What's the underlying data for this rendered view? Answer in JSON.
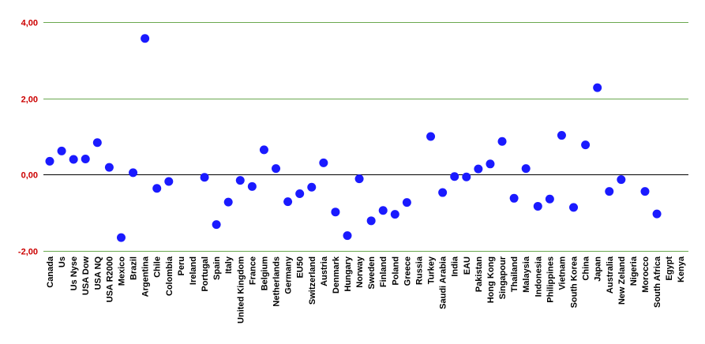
{
  "chart_data": {
    "type": "scatter",
    "title": "",
    "xlabel": "",
    "ylabel": "",
    "ylim": [
      -2,
      4
    ],
    "yticks": [
      -2,
      0,
      2,
      4
    ],
    "ytick_labels": [
      "-2,00",
      "0,00",
      "2,00",
      "4,00"
    ],
    "grid": true,
    "legend": "none",
    "point_color": "#1a1aff",
    "grid_color": "#6aa84f",
    "ytick_color": "#cc0000",
    "categories": [
      "Canada",
      "Us",
      "Us Nyse",
      "USA Dow",
      "USA NQ",
      "USA R2000",
      "Mexico",
      "Brazil",
      "Argentina",
      "Chile",
      "Colombia",
      "Peru",
      "Ireland",
      "Portugal",
      "Spain",
      "Italy",
      "United Kingdom",
      "France",
      "Belgium",
      "Netherlands",
      "Germany",
      "EU50",
      "Switzerland",
      "Austria",
      "Denmark",
      "Hungary",
      "Norway",
      "Sweden",
      "Finland",
      "Poland",
      "Greece",
      "Russia",
      "Turkey",
      "Saudi Arabia",
      "India",
      "EAU",
      "Pakistan",
      "Hong Kong",
      "Singapour",
      "Thailand",
      "Malaysia",
      "Indonesia",
      "Philippines",
      "Vietnam",
      "South Korea",
      "China",
      "Japan",
      "Australia",
      "New Zeland",
      "Nigeria",
      "Morocco",
      "South Africa",
      "Egypt",
      "Kenya"
    ],
    "values": [
      0.35,
      0.62,
      0.4,
      0.41,
      0.84,
      0.19,
      -1.65,
      0.05,
      3.57,
      -0.36,
      -0.18,
      null,
      null,
      -0.07,
      -1.31,
      -0.72,
      -0.15,
      -0.31,
      0.65,
      0.16,
      -0.71,
      -0.5,
      -0.33,
      0.31,
      -0.98,
      -1.6,
      -0.11,
      -1.21,
      -0.94,
      -1.04,
      -0.73,
      null,
      1.0,
      -0.47,
      -0.05,
      -0.06,
      0.15,
      0.28,
      0.87,
      -0.62,
      0.16,
      -0.83,
      -0.64,
      1.03,
      -0.86,
      0.78,
      2.28,
      -0.44,
      -0.13,
      null,
      -0.44,
      -1.03,
      null,
      null
    ]
  }
}
